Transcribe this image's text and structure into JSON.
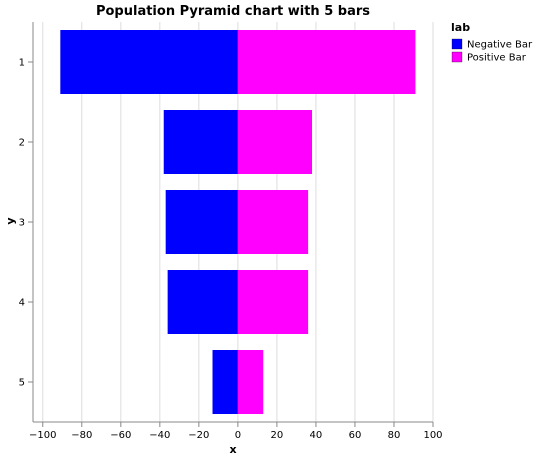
{
  "chart_data": {
    "type": "bar",
    "orientation": "horizontal",
    "title": "Population Pyramid chart with 5 bars",
    "xlabel": "x",
    "ylabel": "y",
    "xlim": [
      -105,
      100
    ],
    "x_ticks": [
      -100,
      -80,
      -60,
      -40,
      -20,
      0,
      20,
      40,
      60,
      80,
      100
    ],
    "x_tick_labels": [
      "−100",
      "−80",
      "−60",
      "−40",
      "−20",
      "0",
      "20",
      "40",
      "60",
      "80",
      "100"
    ],
    "categories": [
      "1",
      "2",
      "3",
      "4",
      "5"
    ],
    "grid": true,
    "legend": {
      "title": "lab",
      "position": "top-right"
    },
    "series": [
      {
        "name": "Negative Bar",
        "color": "#0000ff",
        "values": [
          -91,
          -38,
          -37,
          -36,
          -13
        ]
      },
      {
        "name": "Positive Bar",
        "color": "#ff00ff",
        "values": [
          91,
          38,
          36,
          36,
          13
        ]
      }
    ]
  }
}
